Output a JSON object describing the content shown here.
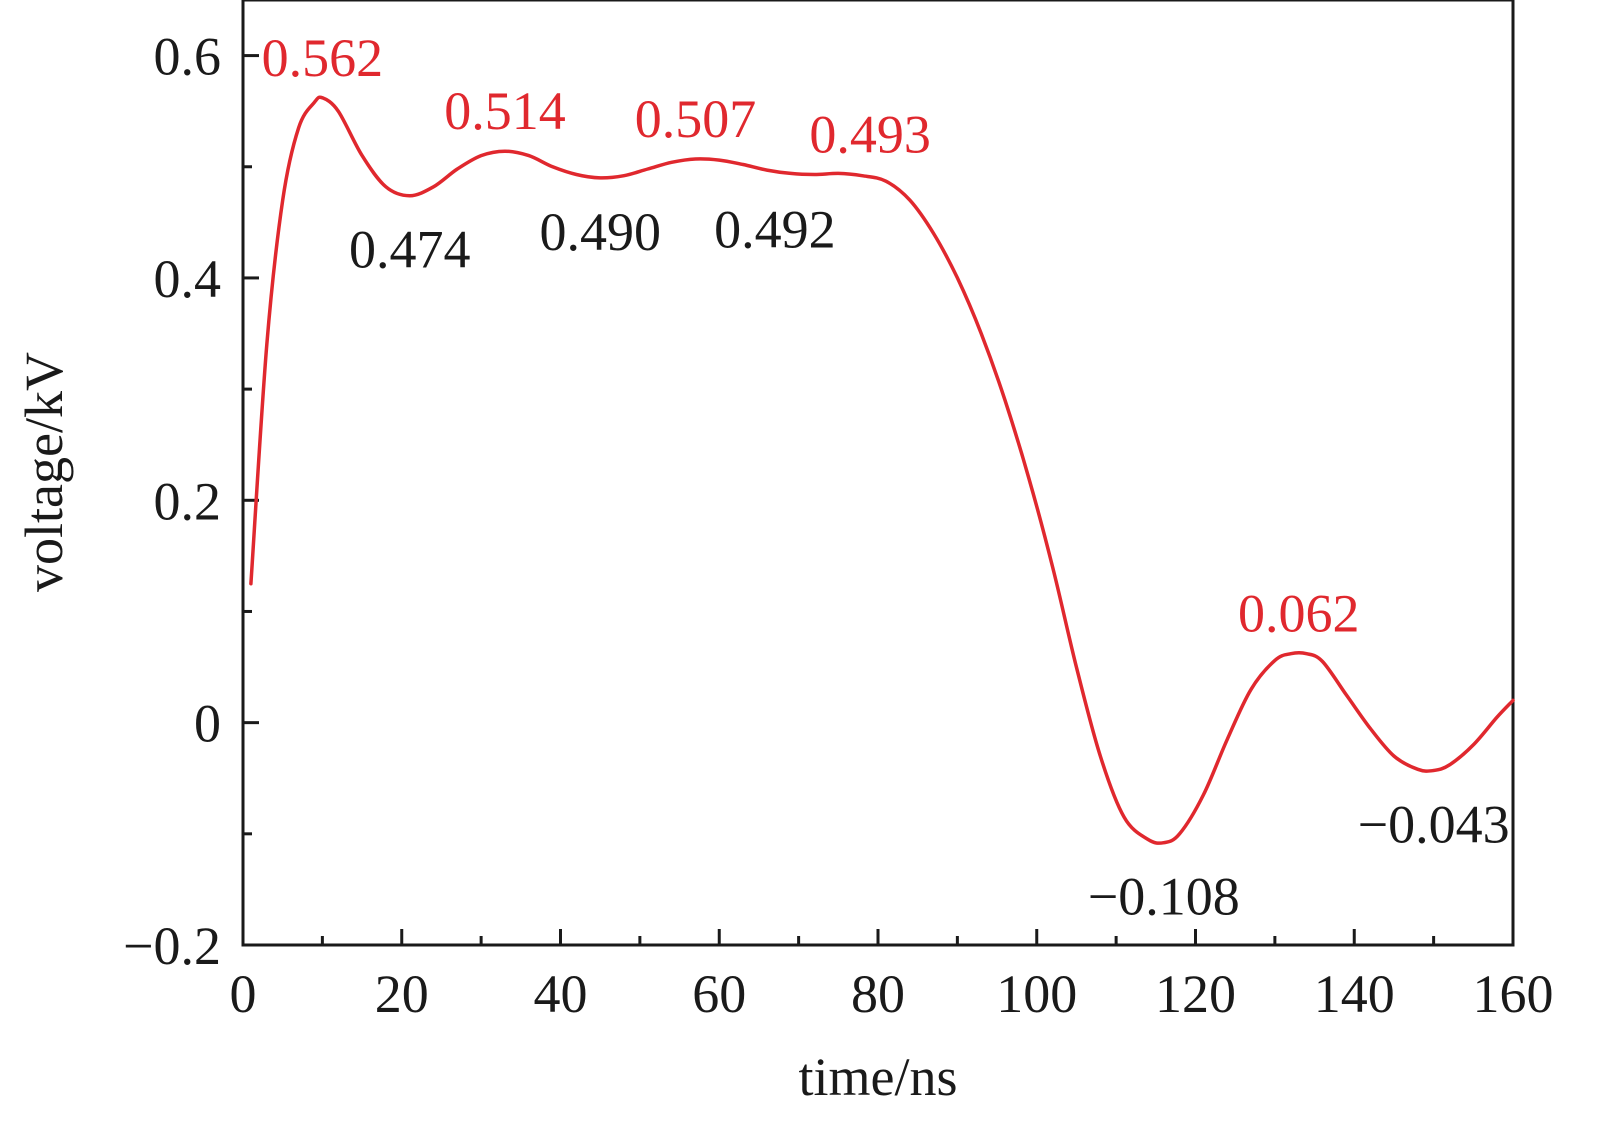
{
  "chart_data": {
    "type": "line",
    "title": "",
    "xlabel": "time/ns",
    "ylabel": "voltage/kV",
    "xlim": [
      0,
      160
    ],
    "ylim": [
      -0.2,
      0.65
    ],
    "grid": false,
    "x_ticks": [
      0,
      20,
      40,
      60,
      80,
      100,
      120,
      140,
      160
    ],
    "y_ticks": [
      -0.2,
      0,
      0.2,
      0.4,
      0.6
    ],
    "x_tick_labels": [
      "0",
      "20",
      "40",
      "60",
      "80",
      "100",
      "120",
      "140",
      "160"
    ],
    "y_tick_labels": [
      "−0.2",
      "0",
      "0.2",
      "0.4",
      "0.6"
    ],
    "line_color": "#e0282e",
    "series": [
      {
        "x": [
          1,
          3,
          5,
          7,
          9,
          10,
          12,
          15,
          18,
          21,
          24,
          27,
          30,
          33,
          36,
          39,
          42,
          45,
          48,
          51,
          54,
          57,
          60,
          63,
          66,
          69,
          72,
          75,
          78,
          81,
          84,
          87,
          90,
          93,
          96,
          99,
          102,
          105,
          108,
          111,
          114,
          116,
          118,
          121,
          124,
          127,
          130,
          132,
          134,
          136,
          139,
          142,
          145,
          148,
          150,
          152,
          155,
          158,
          160
        ],
        "y": [
          0.125,
          0.34,
          0.47,
          0.535,
          0.558,
          0.562,
          0.55,
          0.51,
          0.482,
          0.474,
          0.482,
          0.498,
          0.51,
          0.514,
          0.51,
          0.5,
          0.493,
          0.49,
          0.492,
          0.498,
          0.504,
          0.507,
          0.506,
          0.502,
          0.497,
          0.494,
          0.493,
          0.494,
          0.492,
          0.487,
          0.47,
          0.44,
          0.4,
          0.35,
          0.29,
          0.22,
          0.14,
          0.05,
          -0.03,
          -0.085,
          -0.105,
          -0.108,
          -0.1,
          -0.065,
          -0.015,
          0.03,
          0.056,
          0.062,
          0.062,
          0.055,
          0.025,
          -0.005,
          -0.03,
          -0.042,
          -0.043,
          -0.038,
          -0.02,
          0.005,
          0.02
        ]
      }
    ],
    "annotations": [
      {
        "text": "0.562",
        "x": 10,
        "y": 0.562,
        "kind": "peak"
      },
      {
        "text": "0.514",
        "x": 33,
        "y": 0.514,
        "kind": "peak"
      },
      {
        "text": "0.507",
        "x": 57,
        "y": 0.507,
        "kind": "peak"
      },
      {
        "text": "0.493",
        "x": 79,
        "y": 0.493,
        "kind": "peak"
      },
      {
        "text": "0.062",
        "x": 133,
        "y": 0.062,
        "kind": "peak"
      },
      {
        "text": "0.474",
        "x": 21,
        "y": 0.474,
        "kind": "valley"
      },
      {
        "text": "0.490",
        "x": 45,
        "y": 0.49,
        "kind": "valley"
      },
      {
        "text": "0.492",
        "x": 67,
        "y": 0.492,
        "kind": "valley"
      },
      {
        "text": "−0.108",
        "x": 116,
        "y": -0.108,
        "kind": "valley"
      },
      {
        "text": "−0.043",
        "x": 150,
        "y": -0.043,
        "kind": "valley"
      }
    ]
  }
}
